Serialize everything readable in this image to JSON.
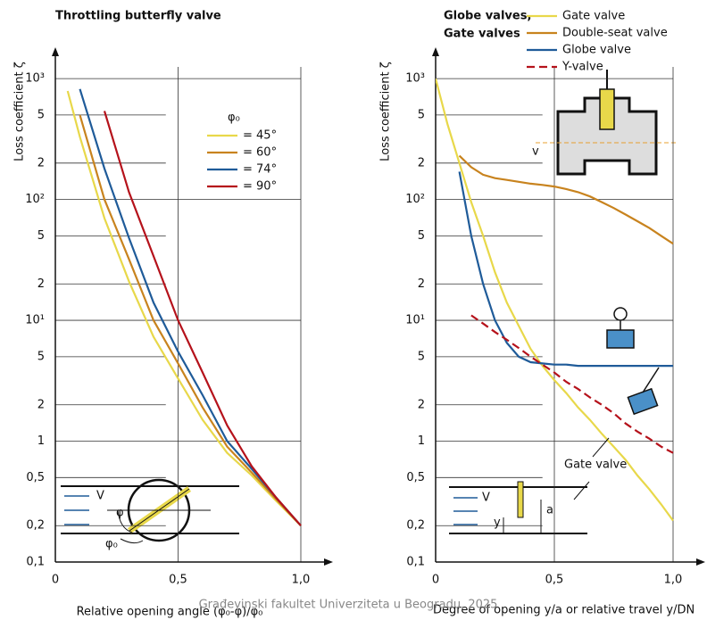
{
  "chart_data": [
    {
      "type": "line",
      "title": [
        "Throttling butterfly valve"
      ],
      "y_label": "Loss coefficient ζ",
      "x_label": "Relative opening angle (φ₀-φ)/φ₀",
      "log_y": true,
      "grid": true,
      "legend_title": "φ₀",
      "legend": "upper right",
      "x": [
        0.05,
        0.1,
        0.2,
        0.3,
        0.4,
        0.5,
        0.6,
        0.7,
        0.8,
        0.9,
        1.0
      ],
      "series": [
        {
          "name": "= 45°",
          "color": "#e8d84a",
          "values": [
            790,
            330,
            70,
            21,
            7.3,
            3.3,
            1.5,
            0.8,
            0.52,
            0.32,
            0.2
          ]
        },
        {
          "name": "= 60°",
          "color": "#c8831e",
          "values": [
            null,
            500,
            100,
            32,
            10,
            4.4,
            1.9,
            0.9,
            0.55,
            0.33,
            0.2
          ]
        },
        {
          "name": "= 74°",
          "color": "#1f5b99",
          "values": [
            null,
            820,
            180,
            48,
            14,
            5.5,
            2.4,
            1,
            0.59,
            0.34,
            0.2
          ]
        },
        {
          "name": "= 90°",
          "color": "#b5121b",
          "values": [
            null,
            null,
            540,
            115,
            34,
            10,
            3.7,
            1.35,
            0.62,
            0.34,
            0.2
          ]
        }
      ],
      "xlim": [
        0,
        1
      ],
      "xticks": [
        0,
        {
          "value": 0.5,
          "label": "0,5"
        },
        {
          "value": 1,
          "label": "1,0"
        }
      ],
      "ylim": [
        0.1,
        1250
      ],
      "yticks": [
        {
          "value": 1000,
          "label": "10³"
        },
        {
          "value": 500,
          "label": "5"
        },
        {
          "value": 200,
          "label": "2"
        },
        {
          "value": 100,
          "label": "10²"
        },
        {
          "value": 50,
          "label": "5"
        },
        {
          "value": 20,
          "label": "2"
        },
        {
          "value": 10,
          "label": "10¹"
        },
        5,
        2,
        1,
        {
          "value": 0.5,
          "label": "0,5"
        },
        {
          "value": 0.2,
          "label": "0,2"
        },
        {
          "value": 0.1,
          "label": "0,1"
        }
      ],
      "annotations": [
        "V",
        "φ",
        "φ₀"
      ]
    },
    {
      "type": "line",
      "title": [
        "Globe valves,",
        "Gate valves"
      ],
      "y_label": "Loss coefficient ζ",
      "x_label": "Degree of opening y/a or relative travel  y/DN",
      "log_y": true,
      "grid": true,
      "legend": "top",
      "x": [
        0,
        0.05,
        0.1,
        0.15,
        0.2,
        0.25,
        0.3,
        0.35,
        0.4,
        0.45,
        0.5,
        0.55,
        0.6,
        0.65,
        0.7,
        0.75,
        0.8,
        0.85,
        0.9,
        0.95,
        1.0
      ],
      "series": [
        {
          "name": "Gate valve",
          "color": "#e8d84a",
          "linestyle": "solid",
          "values": [
            1000,
            420,
            200,
            95,
            50,
            25,
            14,
            9,
            5.8,
            4.2,
            3.2,
            2.5,
            1.9,
            1.5,
            1.15,
            0.9,
            0.7,
            0.52,
            0.4,
            0.3,
            0.22
          ]
        },
        {
          "name": "Double-seat valve",
          "color": "#c8831e",
          "linestyle": "solid",
          "values": [
            null,
            null,
            230,
            185,
            160,
            150,
            145,
            140,
            135,
            132,
            128,
            122,
            115,
            106,
            95,
            85,
            75,
            66,
            58,
            50,
            43
          ]
        },
        {
          "name": "Globe valve",
          "color": "#1f5b99",
          "linestyle": "solid",
          "values": [
            null,
            null,
            170,
            50,
            20,
            10,
            6.5,
            5,
            4.5,
            4.4,
            4.3,
            4.3,
            4.2,
            4.2,
            4.2,
            4.2,
            4.2,
            4.2,
            4.2,
            4.2,
            4.2
          ]
        },
        {
          "name": "Y-valve",
          "color": "#b5121b",
          "linestyle": "dashed",
          "values": [
            null,
            null,
            null,
            11,
            9.4,
            8.0,
            6.9,
            5.9,
            5.0,
            4.3,
            3.7,
            3.1,
            2.7,
            2.3,
            2.0,
            1.7,
            1.4,
            1.2,
            1.05,
            0.9,
            0.8
          ]
        }
      ],
      "xlim": [
        0,
        1
      ],
      "xticks": [
        0,
        {
          "value": 0.5,
          "label": "0,5"
        },
        {
          "value": 1,
          "label": "1,0"
        }
      ],
      "ylim": [
        0.1,
        1250
      ],
      "yticks": [
        {
          "value": 1000,
          "label": "10³"
        },
        {
          "value": 500,
          "label": "5"
        },
        {
          "value": 200,
          "label": "2"
        },
        {
          "value": 100,
          "label": "10²"
        },
        {
          "value": 50,
          "label": "5"
        },
        {
          "value": 20,
          "label": "2"
        },
        {
          "value": 10,
          "label": "10¹"
        },
        5,
        2,
        1,
        {
          "value": 0.5,
          "label": "0,5"
        },
        {
          "value": 0.2,
          "label": "0,2"
        },
        {
          "value": 0.1,
          "label": "0,1"
        }
      ],
      "annotations": [
        "Gate valve",
        "V",
        "y",
        "a",
        "v"
      ]
    }
  ],
  "watermark": "Građevinski fakultet Univerziteta u Beogradu, 2025"
}
